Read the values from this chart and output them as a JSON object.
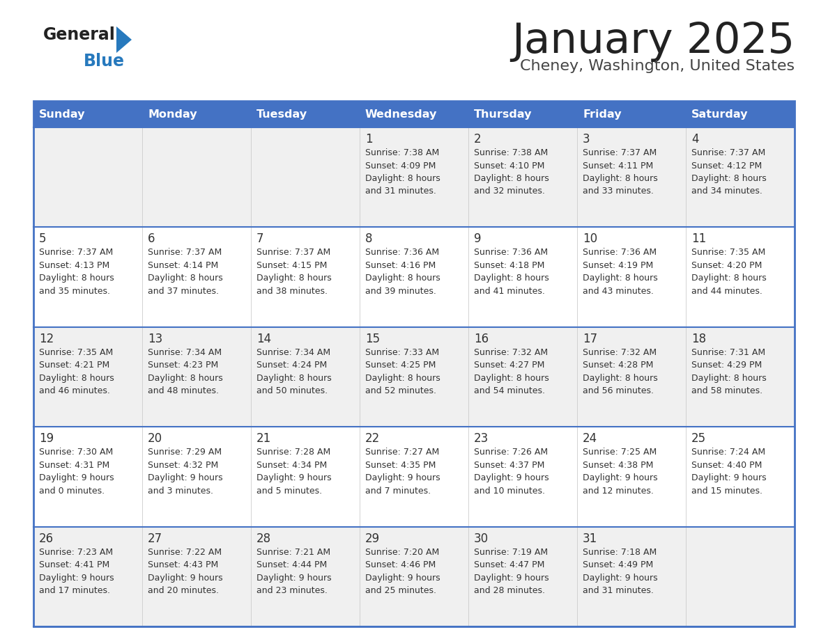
{
  "title": "January 2025",
  "subtitle": "Cheney, Washington, United States",
  "days_of_week": [
    "Sunday",
    "Monday",
    "Tuesday",
    "Wednesday",
    "Thursday",
    "Friday",
    "Saturday"
  ],
  "header_bg": "#4472C4",
  "header_text": "#FFFFFF",
  "row_bg_even": "#FFFFFF",
  "row_bg_odd": "#F0F0F0",
  "cell_text_color": "#333333",
  "day_number_color": "#333333",
  "border_color": "#4472C4",
  "title_color": "#222222",
  "subtitle_color": "#444444",
  "logo_general_color": "#222222",
  "logo_blue_color": "#2779BD",
  "weeks": [
    [
      {
        "day": "",
        "info": ""
      },
      {
        "day": "",
        "info": ""
      },
      {
        "day": "",
        "info": ""
      },
      {
        "day": "1",
        "info": "Sunrise: 7:38 AM\nSunset: 4:09 PM\nDaylight: 8 hours\nand 31 minutes."
      },
      {
        "day": "2",
        "info": "Sunrise: 7:38 AM\nSunset: 4:10 PM\nDaylight: 8 hours\nand 32 minutes."
      },
      {
        "day": "3",
        "info": "Sunrise: 7:37 AM\nSunset: 4:11 PM\nDaylight: 8 hours\nand 33 minutes."
      },
      {
        "day": "4",
        "info": "Sunrise: 7:37 AM\nSunset: 4:12 PM\nDaylight: 8 hours\nand 34 minutes."
      }
    ],
    [
      {
        "day": "5",
        "info": "Sunrise: 7:37 AM\nSunset: 4:13 PM\nDaylight: 8 hours\nand 35 minutes."
      },
      {
        "day": "6",
        "info": "Sunrise: 7:37 AM\nSunset: 4:14 PM\nDaylight: 8 hours\nand 37 minutes."
      },
      {
        "day": "7",
        "info": "Sunrise: 7:37 AM\nSunset: 4:15 PM\nDaylight: 8 hours\nand 38 minutes."
      },
      {
        "day": "8",
        "info": "Sunrise: 7:36 AM\nSunset: 4:16 PM\nDaylight: 8 hours\nand 39 minutes."
      },
      {
        "day": "9",
        "info": "Sunrise: 7:36 AM\nSunset: 4:18 PM\nDaylight: 8 hours\nand 41 minutes."
      },
      {
        "day": "10",
        "info": "Sunrise: 7:36 AM\nSunset: 4:19 PM\nDaylight: 8 hours\nand 43 minutes."
      },
      {
        "day": "11",
        "info": "Sunrise: 7:35 AM\nSunset: 4:20 PM\nDaylight: 8 hours\nand 44 minutes."
      }
    ],
    [
      {
        "day": "12",
        "info": "Sunrise: 7:35 AM\nSunset: 4:21 PM\nDaylight: 8 hours\nand 46 minutes."
      },
      {
        "day": "13",
        "info": "Sunrise: 7:34 AM\nSunset: 4:23 PM\nDaylight: 8 hours\nand 48 minutes."
      },
      {
        "day": "14",
        "info": "Sunrise: 7:34 AM\nSunset: 4:24 PM\nDaylight: 8 hours\nand 50 minutes."
      },
      {
        "day": "15",
        "info": "Sunrise: 7:33 AM\nSunset: 4:25 PM\nDaylight: 8 hours\nand 52 minutes."
      },
      {
        "day": "16",
        "info": "Sunrise: 7:32 AM\nSunset: 4:27 PM\nDaylight: 8 hours\nand 54 minutes."
      },
      {
        "day": "17",
        "info": "Sunrise: 7:32 AM\nSunset: 4:28 PM\nDaylight: 8 hours\nand 56 minutes."
      },
      {
        "day": "18",
        "info": "Sunrise: 7:31 AM\nSunset: 4:29 PM\nDaylight: 8 hours\nand 58 minutes."
      }
    ],
    [
      {
        "day": "19",
        "info": "Sunrise: 7:30 AM\nSunset: 4:31 PM\nDaylight: 9 hours\nand 0 minutes."
      },
      {
        "day": "20",
        "info": "Sunrise: 7:29 AM\nSunset: 4:32 PM\nDaylight: 9 hours\nand 3 minutes."
      },
      {
        "day": "21",
        "info": "Sunrise: 7:28 AM\nSunset: 4:34 PM\nDaylight: 9 hours\nand 5 minutes."
      },
      {
        "day": "22",
        "info": "Sunrise: 7:27 AM\nSunset: 4:35 PM\nDaylight: 9 hours\nand 7 minutes."
      },
      {
        "day": "23",
        "info": "Sunrise: 7:26 AM\nSunset: 4:37 PM\nDaylight: 9 hours\nand 10 minutes."
      },
      {
        "day": "24",
        "info": "Sunrise: 7:25 AM\nSunset: 4:38 PM\nDaylight: 9 hours\nand 12 minutes."
      },
      {
        "day": "25",
        "info": "Sunrise: 7:24 AM\nSunset: 4:40 PM\nDaylight: 9 hours\nand 15 minutes."
      }
    ],
    [
      {
        "day": "26",
        "info": "Sunrise: 7:23 AM\nSunset: 4:41 PM\nDaylight: 9 hours\nand 17 minutes."
      },
      {
        "day": "27",
        "info": "Sunrise: 7:22 AM\nSunset: 4:43 PM\nDaylight: 9 hours\nand 20 minutes."
      },
      {
        "day": "28",
        "info": "Sunrise: 7:21 AM\nSunset: 4:44 PM\nDaylight: 9 hours\nand 23 minutes."
      },
      {
        "day": "29",
        "info": "Sunrise: 7:20 AM\nSunset: 4:46 PM\nDaylight: 9 hours\nand 25 minutes."
      },
      {
        "day": "30",
        "info": "Sunrise: 7:19 AM\nSunset: 4:47 PM\nDaylight: 9 hours\nand 28 minutes."
      },
      {
        "day": "31",
        "info": "Sunrise: 7:18 AM\nSunset: 4:49 PM\nDaylight: 9 hours\nand 31 minutes."
      },
      {
        "day": "",
        "info": ""
      }
    ]
  ]
}
